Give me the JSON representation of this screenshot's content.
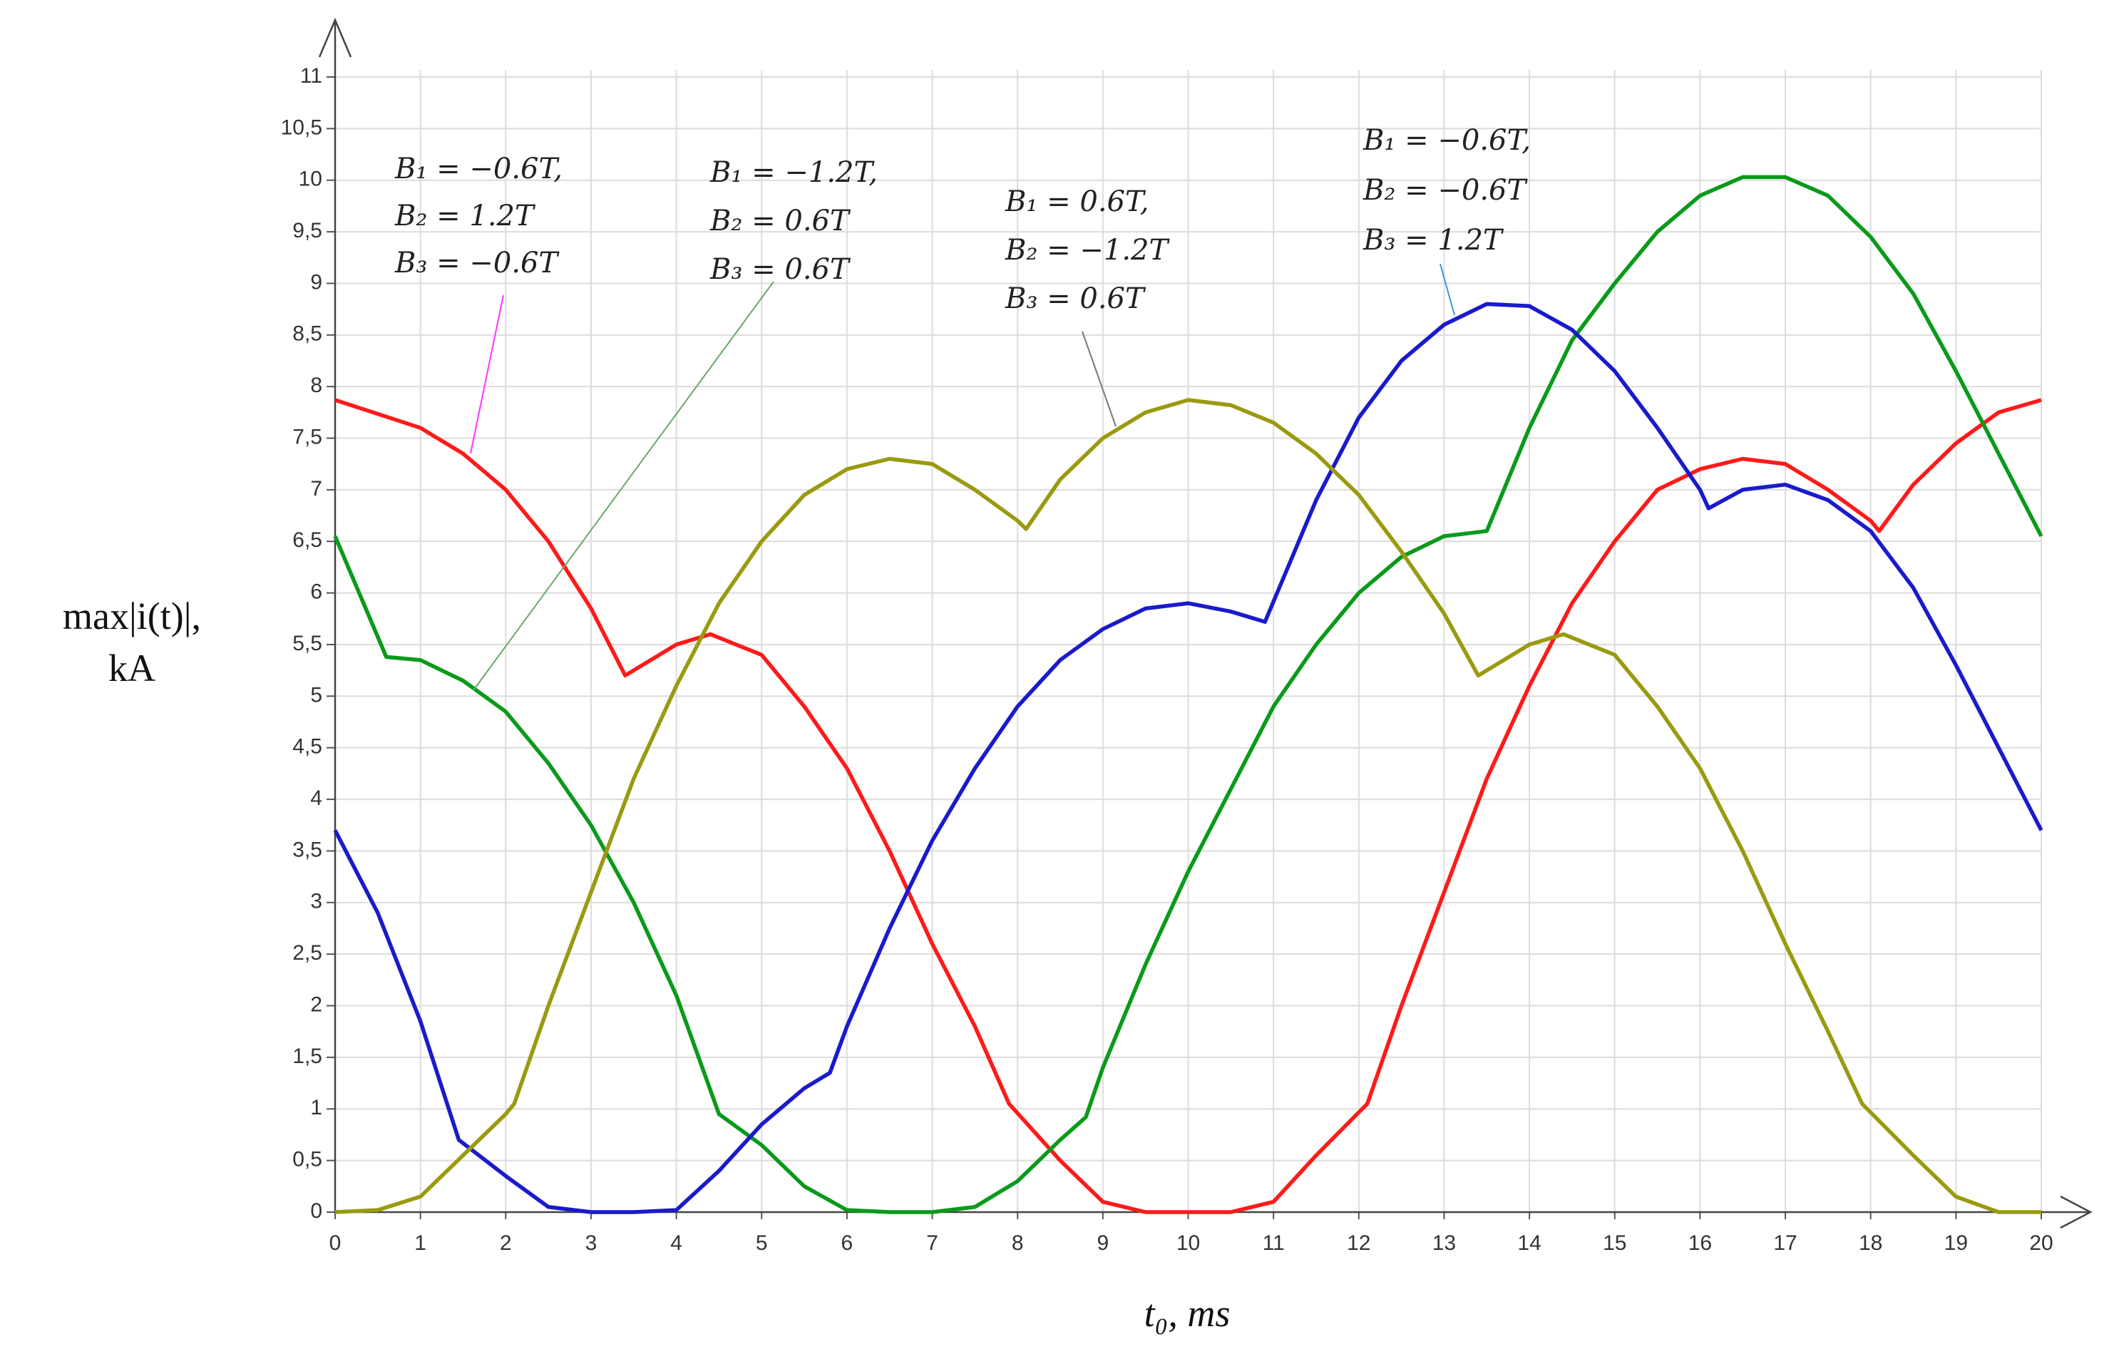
{
  "chart_data": {
    "type": "line",
    "xlabel": "t₀, ms",
    "ylabel": [
      "max|i(t)|,",
      "kA"
    ],
    "xlim": [
      0,
      20
    ],
    "ylim": [
      0,
      11
    ],
    "xticks": [
      0,
      1,
      2,
      3,
      4,
      5,
      6,
      7,
      8,
      9,
      10,
      11,
      12,
      13,
      14,
      15,
      16,
      17,
      18,
      19,
      20
    ],
    "yticks": [
      0,
      {
        "value": 0.5,
        "label": "0,5"
      },
      1,
      {
        "value": 1.5,
        "label": "1,5"
      },
      2,
      {
        "value": 2.5,
        "label": "2,5"
      },
      3,
      {
        "value": 3.5,
        "label": "3,5"
      },
      4,
      {
        "value": 4.5,
        "label": "4,5"
      },
      5,
      {
        "value": 5.5,
        "label": "5,5"
      },
      6,
      {
        "value": 6.5,
        "label": "6,5"
      },
      7,
      {
        "value": 7.5,
        "label": "7,5"
      },
      8,
      {
        "value": 8.5,
        "label": "8,5"
      },
      9,
      {
        "value": 9.5,
        "label": "9,5"
      },
      10,
      {
        "value": 10.5,
        "label": "10,5"
      },
      11
    ],
    "grid": true,
    "series": [
      {
        "color": "#ff1a1a",
        "x": [
          0,
          1,
          1.5,
          2,
          2.5,
          3,
          3.4,
          4,
          4.4,
          5,
          5.5,
          6,
          6.5,
          7,
          7.5,
          7.9,
          8.5,
          9,
          9.5,
          10,
          10.5,
          11,
          11.5,
          12.1,
          12.5,
          13,
          13.5,
          14,
          14.5,
          15,
          15.5,
          16,
          16.5,
          17,
          17.5,
          18,
          18.1,
          18.5,
          19,
          19.5,
          20
        ],
        "values": [
          7.87,
          7.6,
          7.35,
          7.0,
          6.5,
          5.85,
          5.2,
          5.5,
          5.6,
          5.4,
          4.9,
          4.3,
          3.5,
          2.6,
          1.8,
          1.05,
          0.5,
          0.1,
          0,
          0,
          0,
          0.1,
          0.55,
          1.05,
          2.0,
          3.1,
          4.2,
          5.1,
          5.9,
          6.5,
          7.0,
          7.2,
          7.3,
          7.25,
          7.0,
          6.7,
          6.6,
          7.05,
          7.45,
          7.75,
          7.87
        ]
      },
      {
        "color": "#0a9a1a",
        "x": [
          0,
          0.6,
          1,
          1.5,
          2,
          2.5,
          3,
          3.5,
          4,
          4.5,
          5,
          5.5,
          6,
          6.5,
          7,
          7.5,
          8,
          8.5,
          8.8,
          9,
          9.5,
          10,
          10.5,
          11,
          11.5,
          12,
          12.5,
          13,
          13.5,
          14,
          14.5,
          15,
          15.5,
          16,
          16.5,
          17,
          17.5,
          18,
          18.5,
          19,
          19.5,
          20
        ],
        "values": [
          6.55,
          5.38,
          5.35,
          5.15,
          4.85,
          4.35,
          3.75,
          3.0,
          2.1,
          0.95,
          0.65,
          0.25,
          0.02,
          0,
          0,
          0.05,
          0.3,
          0.7,
          0.92,
          1.4,
          2.4,
          3.3,
          4.1,
          4.9,
          5.5,
          6.0,
          6.35,
          6.55,
          6.6,
          7.6,
          8.45,
          9.0,
          9.5,
          9.85,
          10.03,
          10.03,
          9.85,
          9.45,
          8.9,
          8.15,
          7.35,
          6.55
        ]
      },
      {
        "color": "#1a1acc",
        "x": [
          0,
          0.5,
          1,
          1.45,
          2,
          2.5,
          3,
          3.5,
          4,
          4.5,
          5,
          5.5,
          5.8,
          6,
          6.5,
          7,
          7.5,
          8,
          8.5,
          9,
          9.5,
          10,
          10.5,
          10.9,
          11.5,
          12,
          12.5,
          13,
          13.5,
          14,
          14.5,
          15,
          15.5,
          16,
          16.1,
          16.5,
          17,
          17.5,
          18,
          18.5,
          19,
          19.5,
          20
        ],
        "values": [
          3.7,
          2.9,
          1.85,
          0.7,
          0.35,
          0.05,
          0,
          0,
          0.02,
          0.4,
          0.85,
          1.2,
          1.35,
          1.8,
          2.75,
          3.6,
          4.3,
          4.9,
          5.35,
          5.65,
          5.85,
          5.9,
          5.82,
          5.72,
          6.9,
          7.7,
          8.25,
          8.6,
          8.8,
          8.78,
          8.55,
          8.15,
          7.6,
          7.0,
          6.82,
          7.0,
          7.05,
          6.9,
          6.6,
          6.05,
          5.3,
          4.5,
          3.7
        ]
      },
      {
        "color": "#9a9a10",
        "x": [
          0,
          0.5,
          1,
          1.5,
          2,
          2.1,
          2.5,
          3,
          3.5,
          4,
          4.5,
          5,
          5.5,
          6,
          6.5,
          7,
          7.5,
          8,
          8.1,
          8.5,
          9,
          9.5,
          10,
          10.5,
          11,
          11.5,
          12,
          12.5,
          13,
          13.4,
          14,
          14.4,
          15,
          15.5,
          16,
          16.5,
          17,
          17.5,
          17.9,
          18.5,
          19,
          19.5,
          20
        ],
        "values": [
          0,
          0.02,
          0.15,
          0.55,
          0.95,
          1.05,
          2.0,
          3.1,
          4.2,
          5.1,
          5.9,
          6.5,
          6.95,
          7.2,
          7.3,
          7.25,
          7.0,
          6.7,
          6.62,
          7.1,
          7.5,
          7.75,
          7.87,
          7.82,
          7.65,
          7.35,
          6.95,
          6.4,
          5.8,
          5.2,
          5.5,
          5.6,
          5.4,
          4.9,
          4.3,
          3.5,
          2.6,
          1.75,
          1.05,
          0.55,
          0.15,
          0,
          0
        ]
      }
    ],
    "annotations": [
      {
        "lines": [
          "B₁ = −0.6T,",
          "B₂ = 1.2T",
          "B₃ = −0.6T"
        ],
        "color": "#ff33ff"
      },
      {
        "lines": [
          "B₁ = −1.2T,",
          "B₂ = 0.6T",
          "B₃ = 0.6T"
        ],
        "color": "#66aa66"
      },
      {
        "lines": [
          "B₁ = 0.6T,",
          "B₂ = −1.2T",
          "B₃ = 0.6T"
        ],
        "color": "#777777"
      },
      {
        "lines": [
          "B₁ = −0.6T,",
          "B₂ = −0.6T",
          "B₃ = 1.2T"
        ],
        "color": "#3399dd"
      }
    ]
  }
}
